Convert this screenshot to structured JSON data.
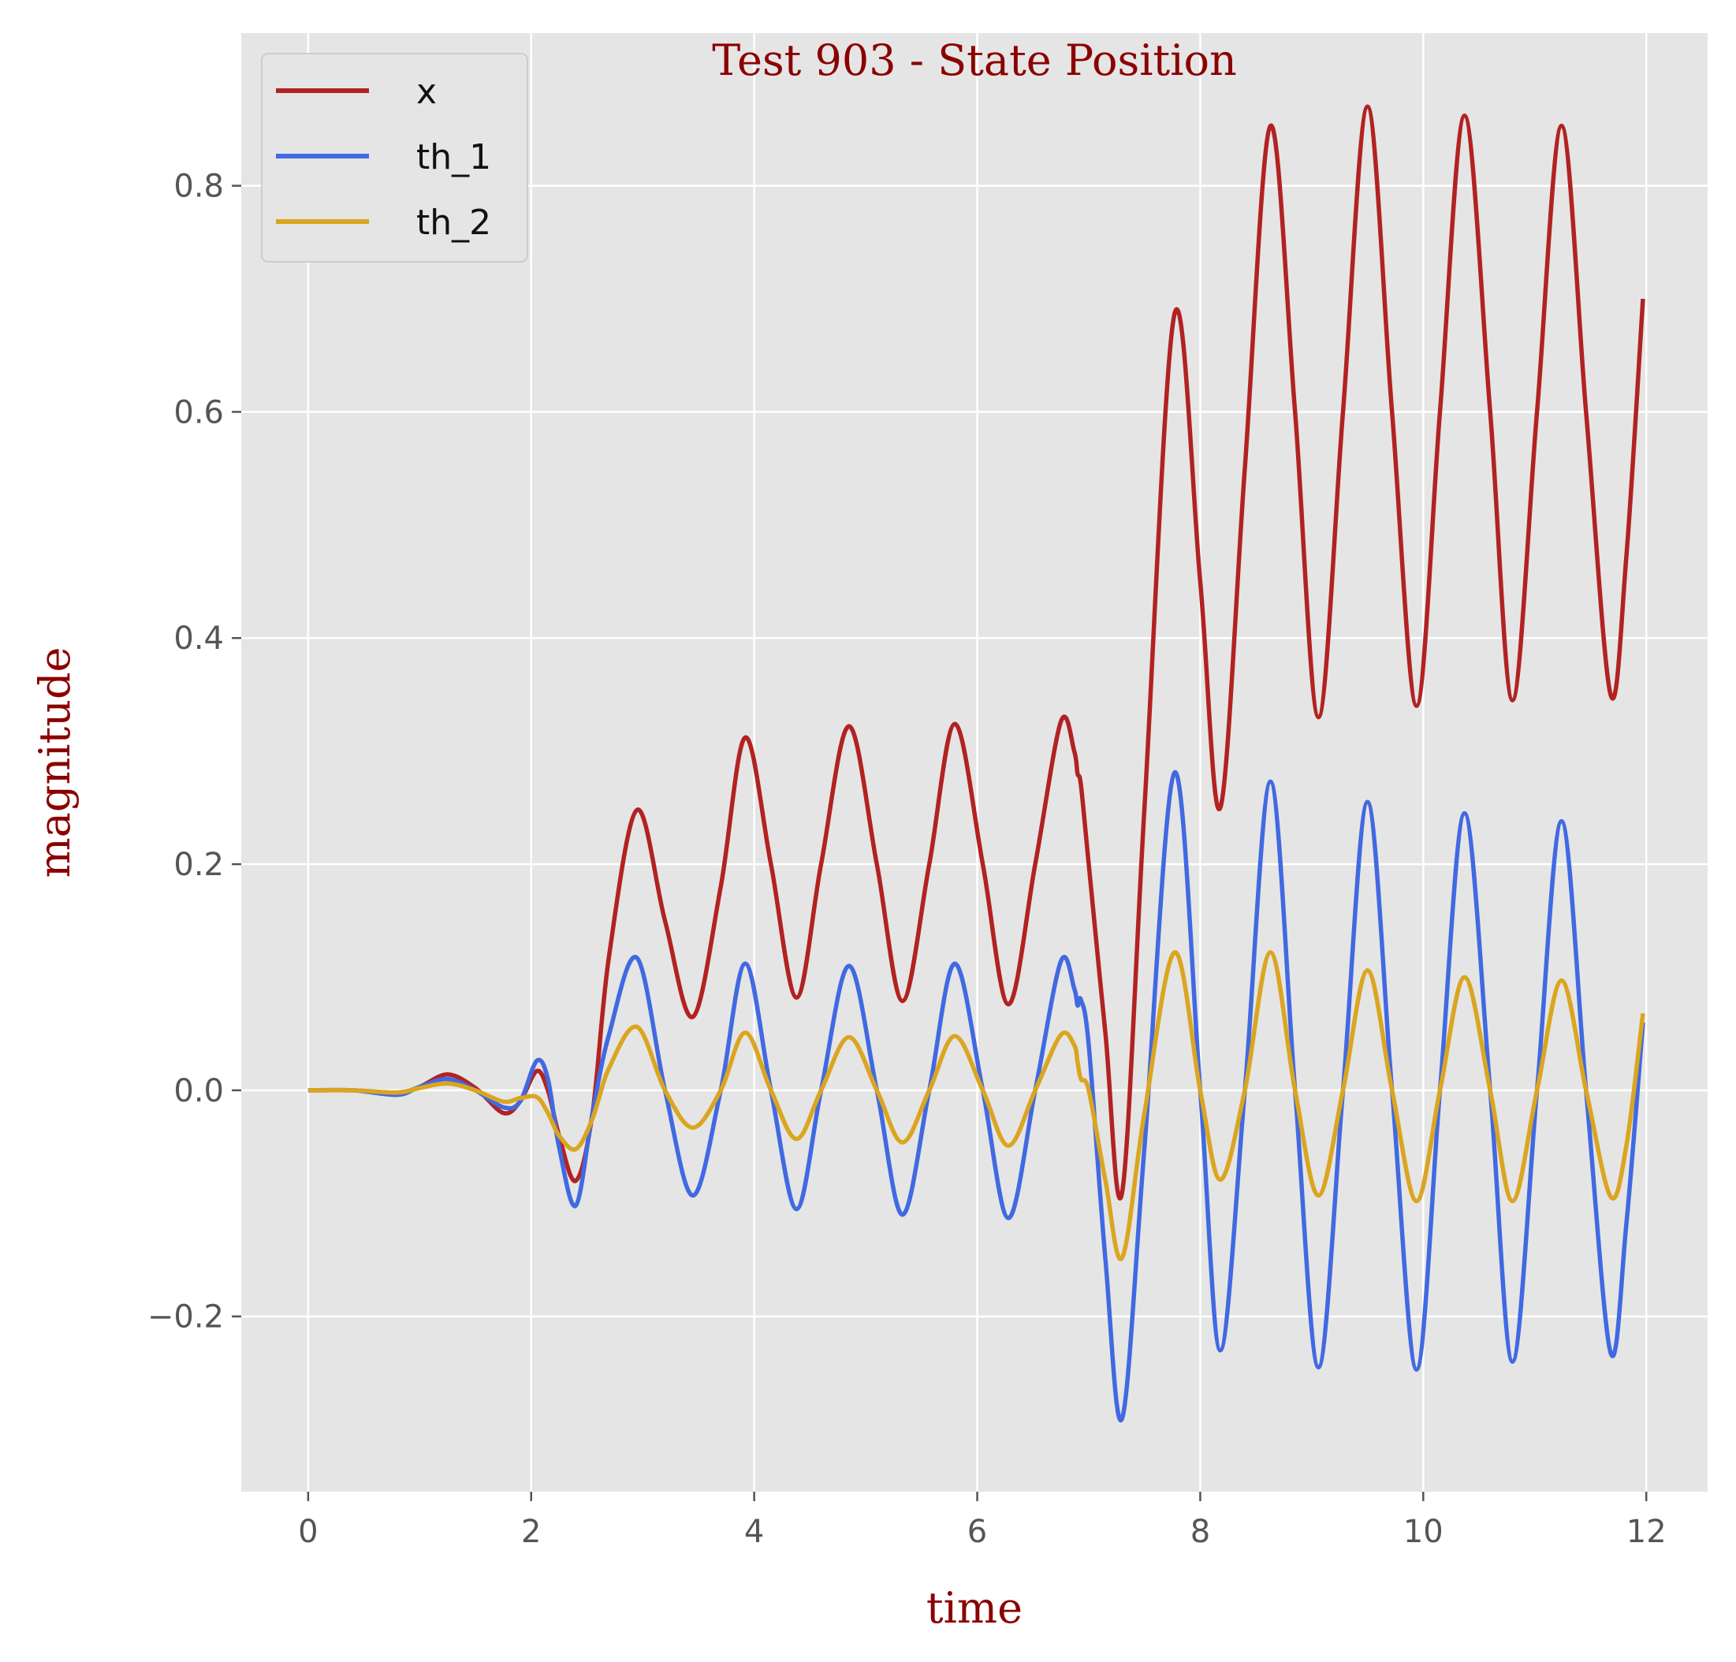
{
  "chart_data": {
    "type": "line",
    "title": "Test 903 - State Position",
    "xlabel": "time",
    "ylabel": "magnitude",
    "xlim": [
      -0.6,
      12.55
    ],
    "ylim": [
      -0.355,
      0.935
    ],
    "x_ticks": [
      0,
      2,
      4,
      6,
      8,
      10,
      12
    ],
    "x_tick_labels": [
      "0",
      "2",
      "4",
      "6",
      "8",
      "10",
      "12"
    ],
    "y_ticks": [
      -0.2,
      0.0,
      0.2,
      0.4,
      0.6,
      0.8
    ],
    "y_tick_labels": [
      "−0.2",
      "0.0",
      "0.2",
      "0.4",
      "0.6",
      "0.8"
    ],
    "grid": true,
    "legend_position": "upper-left",
    "x": [
      0.0,
      0.4,
      0.8,
      1.0,
      1.25,
      1.5,
      1.75,
      1.9,
      2.05,
      2.15,
      2.25,
      2.4,
      2.55,
      2.7,
      2.95,
      3.2,
      3.45,
      3.7,
      3.92,
      4.15,
      4.38,
      4.6,
      4.85,
      5.1,
      5.33,
      5.57,
      5.8,
      6.05,
      6.28,
      6.52,
      6.75,
      6.87,
      6.9,
      6.93,
      7.0,
      7.15,
      7.3,
      7.5,
      7.77,
      8.0,
      8.18,
      8.4,
      8.63,
      8.85,
      9.06,
      9.28,
      9.5,
      9.72,
      9.94,
      10.15,
      10.37,
      10.6,
      10.8,
      11.02,
      11.24,
      11.46,
      11.68,
      11.82,
      11.97
    ],
    "series": [
      {
        "name": "x",
        "color": "#b22222",
        "values": [
          0.0,
          0.0,
          -0.002,
          0.003,
          0.014,
          0.002,
          -0.02,
          -0.01,
          0.017,
          0.0,
          -0.04,
          -0.08,
          -0.02,
          0.12,
          0.248,
          0.15,
          0.065,
          0.18,
          0.312,
          0.2,
          0.082,
          0.2,
          0.322,
          0.2,
          0.079,
          0.2,
          0.324,
          0.2,
          0.076,
          0.2,
          0.326,
          0.3,
          0.28,
          0.27,
          0.2,
          0.05,
          -0.09,
          0.25,
          0.687,
          0.45,
          0.25,
          0.55,
          0.853,
          0.6,
          0.33,
          0.6,
          0.87,
          0.6,
          0.34,
          0.6,
          0.862,
          0.6,
          0.345,
          0.6,
          0.853,
          0.6,
          0.35,
          0.47,
          0.7
        ]
      },
      {
        "name": "th_1",
        "color": "#4169e1",
        "values": [
          0.0,
          0.0,
          -0.004,
          0.003,
          0.01,
          0.0,
          -0.015,
          -0.01,
          0.026,
          0.01,
          -0.05,
          -0.102,
          -0.02,
          0.05,
          0.117,
          0.0,
          -0.093,
          0.0,
          0.112,
          0.0,
          -0.105,
          0.0,
          0.11,
          0.0,
          -0.11,
          0.0,
          0.112,
          0.0,
          -0.113,
          0.0,
          0.114,
          0.09,
          0.075,
          0.08,
          0.04,
          -0.15,
          -0.29,
          -0.05,
          0.281,
          0.0,
          -0.23,
          0.0,
          0.273,
          0.0,
          -0.245,
          0.0,
          0.255,
          0.0,
          -0.247,
          0.0,
          0.245,
          0.0,
          -0.24,
          0.0,
          0.238,
          0.0,
          -0.232,
          -0.12,
          0.06
        ]
      },
      {
        "name": "th_2",
        "color": "#daa520",
        "values": [
          0.0,
          0.0,
          -0.002,
          0.002,
          0.006,
          0.0,
          -0.01,
          -0.007,
          -0.006,
          -0.02,
          -0.04,
          -0.052,
          -0.025,
          0.02,
          0.056,
          0.0,
          -0.033,
          0.0,
          0.051,
          0.0,
          -0.043,
          0.0,
          0.047,
          0.0,
          -0.046,
          0.0,
          0.048,
          0.0,
          -0.049,
          0.0,
          0.049,
          0.04,
          0.025,
          0.01,
          0.0,
          -0.08,
          -0.148,
          -0.02,
          0.122,
          0.0,
          -0.079,
          0.0,
          0.122,
          0.0,
          -0.093,
          0.0,
          0.106,
          0.0,
          -0.098,
          0.0,
          0.1,
          0.0,
          -0.098,
          0.0,
          0.097,
          0.0,
          -0.094,
          -0.05,
          0.068
        ]
      }
    ]
  },
  "style": {
    "plot_background": "#e5e5e5",
    "grid_color": "#ffffff",
    "title_color": "#8b0000"
  }
}
